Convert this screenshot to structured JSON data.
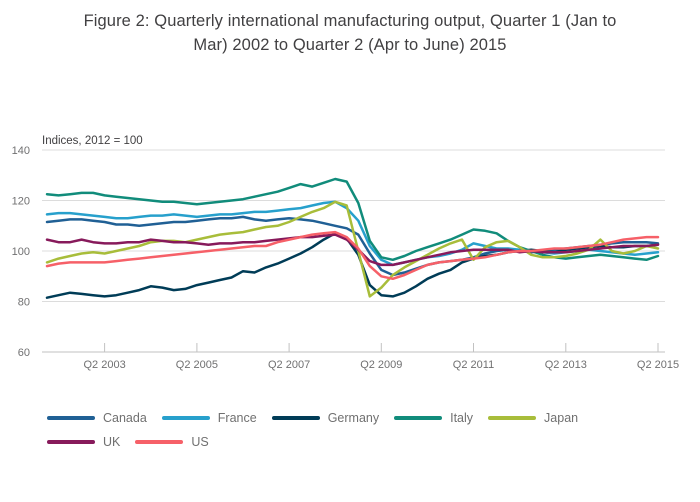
{
  "title": {
    "line1": "Figure 2: Quarterly international manufacturing output, Quarter 1 (Jan to",
    "line2": "Mar) 2002 to Quarter 2 (Apr to June) 2015"
  },
  "chart_data": {
    "type": "line",
    "title": "Figure 2: Quarterly international manufacturing output, Quarter 1 (Jan to Mar) 2002 to Quarter 2 (Apr to June) 2015",
    "units_label": "Indices, 2012 = 100",
    "ylim": [
      60,
      140
    ],
    "y_ticks": [
      140,
      120,
      100,
      80,
      60
    ],
    "x_tick_labels": [
      "Q2 2003",
      "Q2 2005",
      "Q2 2007",
      "Q2 2009",
      "Q2 2011",
      "Q2 2013",
      "Q2 2015"
    ],
    "x_tick_indices": [
      5,
      13,
      21,
      29,
      37,
      45,
      53
    ],
    "grid": true,
    "legend_position": "bottom",
    "grid_color": "#dcdcdc",
    "axis_color": "#c2c2c2",
    "axis_text_color": "#707071",
    "x": [
      "2002 Q1",
      "2002 Q2",
      "2002 Q3",
      "2002 Q4",
      "2003 Q1",
      "2003 Q2",
      "2003 Q3",
      "2003 Q4",
      "2004 Q1",
      "2004 Q2",
      "2004 Q3",
      "2004 Q4",
      "2005 Q1",
      "2005 Q2",
      "2005 Q3",
      "2005 Q4",
      "2006 Q1",
      "2006 Q2",
      "2006 Q3",
      "2006 Q4",
      "2007 Q1",
      "2007 Q2",
      "2007 Q3",
      "2007 Q4",
      "2008 Q1",
      "2008 Q2",
      "2008 Q3",
      "2008 Q4",
      "2009 Q1",
      "2009 Q2",
      "2009 Q3",
      "2009 Q4",
      "2010 Q1",
      "2010 Q2",
      "2010 Q3",
      "2010 Q4",
      "2011 Q1",
      "2011 Q2",
      "2011 Q3",
      "2011 Q4",
      "2012 Q1",
      "2012 Q2",
      "2012 Q3",
      "2012 Q4",
      "2013 Q1",
      "2013 Q2",
      "2013 Q3",
      "2013 Q4",
      "2014 Q1",
      "2014 Q2",
      "2014 Q3",
      "2014 Q4",
      "2015 Q1",
      "2015 Q2"
    ],
    "series": [
      {
        "name": "Canada",
        "color": "#206095",
        "values": [
          111.5,
          112,
          112.5,
          112.5,
          112,
          111.5,
          110.5,
          110.5,
          110,
          110.5,
          111,
          111.5,
          111.5,
          112,
          112.5,
          113,
          113,
          113.5,
          112.5,
          112,
          112.5,
          113,
          112.5,
          112,
          111,
          110,
          109,
          106.5,
          99,
          92.5,
          90.5,
          91.5,
          93,
          94.5,
          95.5,
          96,
          96.5,
          97.5,
          99,
          100,
          100.5,
          100,
          99.5,
          100,
          100.5,
          101,
          101.5,
          102,
          102.5,
          103,
          103.5,
          103.5,
          103.5,
          103
        ]
      },
      {
        "name": "France",
        "color": "#27A0CC",
        "values": [
          114.5,
          115,
          115,
          114.5,
          114,
          113.5,
          113,
          113,
          113.5,
          114,
          114,
          114.5,
          114,
          113.5,
          114,
          114.5,
          114.5,
          115,
          115.5,
          115.5,
          116,
          116.5,
          117,
          118,
          119,
          119.5,
          117,
          112,
          102,
          96.5,
          94.5,
          95.5,
          96.5,
          97.5,
          98,
          99,
          100.5,
          103,
          102,
          101,
          101,
          100.5,
          100,
          99.5,
          99,
          99.5,
          100,
          100.5,
          100,
          99.5,
          99,
          98.5,
          99,
          99.5
        ]
      },
      {
        "name": "Germany",
        "color": "#003C57",
        "values": [
          81.5,
          82.5,
          83.5,
          83,
          82.5,
          82,
          82.5,
          83.5,
          84.5,
          86,
          85.5,
          84.5,
          85,
          86.5,
          87.5,
          88.5,
          89.5,
          92,
          91.5,
          93.5,
          95,
          97,
          99,
          101.5,
          104.5,
          107,
          105,
          98.5,
          86.5,
          82.5,
          82,
          83.5,
          86,
          89,
          91,
          92.5,
          95.5,
          97,
          98,
          98.5,
          99.5,
          100,
          100.5,
          100,
          99.5,
          100.5,
          101,
          101.5,
          102,
          101.5,
          101.5,
          102,
          102,
          102.5
        ]
      },
      {
        "name": "Italy",
        "color": "#118C7B",
        "values": [
          122.5,
          122,
          122.5,
          123,
          123,
          122,
          121.5,
          121,
          120.5,
          120,
          119.5,
          119.5,
          119,
          118.5,
          119,
          119.5,
          120,
          120.5,
          121.5,
          122.5,
          123.5,
          125,
          126.5,
          125.5,
          127,
          128.5,
          127.5,
          119,
          104,
          97.5,
          96.5,
          98,
          100,
          101.5,
          103,
          104.5,
          106.5,
          108.5,
          108,
          107,
          104,
          101.5,
          100,
          98.5,
          97.5,
          97,
          97.5,
          98,
          98.5,
          98,
          97.5,
          97,
          96.5,
          98
        ]
      },
      {
        "name": "Japan",
        "color": "#A8BD3A",
        "values": [
          95.5,
          97,
          98,
          99,
          99.5,
          99,
          100,
          101,
          102,
          103.5,
          104,
          104,
          103.5,
          104.5,
          105.5,
          106.5,
          107,
          107.5,
          108.5,
          109.5,
          110,
          111.5,
          113.5,
          115.5,
          117,
          119.5,
          118,
          100,
          82,
          85.5,
          90.5,
          93.5,
          96,
          98.5,
          101,
          103,
          104.5,
          96.5,
          101.5,
          103.5,
          104,
          101.5,
          98.5,
          97.5,
          97.5,
          98,
          99,
          100.5,
          104.5,
          100,
          99,
          100,
          102,
          101
        ]
      },
      {
        "name": "UK",
        "color": "#871A5B",
        "values": [
          104.5,
          103.5,
          103.5,
          104.5,
          103.5,
          103,
          103,
          103.5,
          103.5,
          104.5,
          104,
          103.5,
          103.5,
          103,
          102.5,
          103,
          103,
          103.5,
          103.5,
          104,
          104.5,
          105,
          105.5,
          105.5,
          106,
          106.5,
          104.5,
          100.5,
          96,
          94.5,
          94.5,
          95.5,
          96.5,
          97.5,
          98.5,
          99.5,
          100,
          100.5,
          100.5,
          100.5,
          100.5,
          99.5,
          100,
          99.5,
          99.5,
          99.5,
          100,
          100.5,
          101,
          101.5,
          102,
          102,
          102,
          102.5
        ]
      },
      {
        "name": "US",
        "color": "#F66068",
        "values": [
          94,
          95,
          95.5,
          95.5,
          95.5,
          95.5,
          96,
          96.5,
          97,
          97.5,
          98,
          98.5,
          99,
          99.5,
          100,
          100.5,
          101,
          101.5,
          102,
          102,
          103.5,
          104.5,
          105.5,
          106.5,
          107,
          107.5,
          105.5,
          101,
          94,
          90,
          89,
          90.5,
          92.5,
          94.5,
          95.5,
          96,
          96.5,
          97,
          97.5,
          98.5,
          99.5,
          100,
          100,
          100.5,
          101,
          101,
          101.5,
          102,
          102.5,
          103.5,
          104.5,
          105,
          105.5,
          105.5
        ]
      }
    ]
  },
  "legend": {
    "row1": [
      "Canada",
      "France",
      "Germany",
      "Italy",
      "Japan"
    ],
    "row2": [
      "UK",
      "US"
    ]
  }
}
